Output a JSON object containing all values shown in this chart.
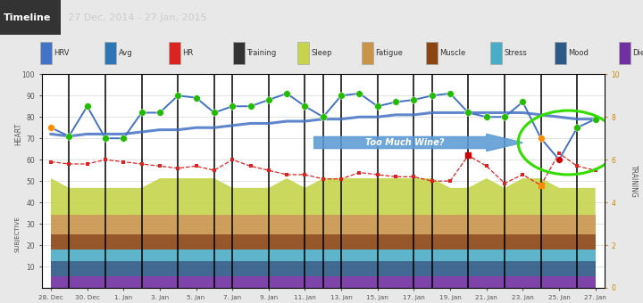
{
  "title": "27 Dec, 2014 - 27 Jan, 2015",
  "header_bg": "#4a4a4a",
  "legend_bg": "#ffffff",
  "plot_bg": "#ffffff",
  "fig_bg": "#e8e8e8",
  "x_labels": [
    "28. Dec",
    "30. Dec",
    "1. Jan",
    "3. Jan",
    "5. Jan",
    "7. Jan",
    "9. Jan",
    "11. Jan",
    "13. Jan",
    "15. Jan",
    "17. Jan",
    "19. Jan",
    "21. Jan",
    "23. Jan",
    "25. Jan",
    "27. Jan"
  ],
  "x_tick_pos": [
    0,
    2,
    4,
    6,
    8,
    10,
    12,
    14,
    16,
    18,
    20,
    22,
    24,
    26,
    28,
    30
  ],
  "hrv_x": [
    0,
    1,
    2,
    3,
    4,
    5,
    6,
    7,
    8,
    9,
    10,
    11,
    12,
    13,
    14,
    15,
    16,
    17,
    18,
    19,
    20,
    21,
    22,
    23,
    24,
    25,
    26,
    27,
    28,
    29,
    30
  ],
  "hrv_values": [
    75,
    71,
    85,
    70,
    70,
    82,
    82,
    90,
    89,
    82,
    85,
    85,
    88,
    91,
    85,
    80,
    90,
    91,
    85,
    87,
    88,
    90,
    91,
    82,
    80,
    80,
    87,
    70,
    60,
    75,
    79
  ],
  "hrv_dot_colors": [
    "#ff8c00",
    "#22bb00",
    "#22bb00",
    "#22bb00",
    "#22bb00",
    "#22bb00",
    "#22bb00",
    "#22bb00",
    "#22bb00",
    "#22bb00",
    "#22bb00",
    "#22bb00",
    "#22bb00",
    "#22bb00",
    "#22bb00",
    "#22bb00",
    "#22bb00",
    "#22bb00",
    "#22bb00",
    "#22bb00",
    "#22bb00",
    "#22bb00",
    "#22bb00",
    "#22bb00",
    "#22bb00",
    "#22bb00",
    "#22bb00",
    "#ff8c00",
    "#cc0000",
    "#22bb00",
    "#22bb00"
  ],
  "avg_x": [
    0,
    1,
    2,
    3,
    4,
    5,
    6,
    7,
    8,
    9,
    10,
    11,
    12,
    13,
    14,
    15,
    16,
    17,
    18,
    19,
    20,
    21,
    22,
    23,
    24,
    25,
    26,
    27,
    28,
    29,
    30
  ],
  "avg_values": [
    72,
    71,
    72,
    72,
    72,
    73,
    74,
    74,
    75,
    75,
    76,
    77,
    77,
    78,
    78,
    79,
    79,
    80,
    80,
    81,
    81,
    82,
    82,
    82,
    82,
    82,
    82,
    81,
    80,
    79,
    79
  ],
  "hr_x": [
    0,
    1,
    2,
    3,
    4,
    5,
    6,
    7,
    8,
    9,
    10,
    11,
    12,
    13,
    14,
    15,
    16,
    17,
    18,
    19,
    20,
    21,
    22,
    23,
    24,
    25,
    26,
    27,
    28,
    29,
    30
  ],
  "hr_values": [
    59,
    58,
    58,
    60,
    59,
    58,
    57,
    56,
    57,
    55,
    60,
    57,
    55,
    53,
    53,
    51,
    51,
    54,
    53,
    52,
    52,
    50,
    50,
    62,
    57,
    49,
    53,
    48,
    63,
    57,
    55
  ],
  "hr_dot_colors": [
    "#dd2222",
    "#dd2222",
    "#dd2222",
    "#dd2222",
    "#dd2222",
    "#dd2222",
    "#dd2222",
    "#dd2222",
    "#dd2222",
    "#dd2222",
    "#dd2222",
    "#dd2222",
    "#dd2222",
    "#dd2222",
    "#dd2222",
    "#dd2222",
    "#dd2222",
    "#dd2222",
    "#dd2222",
    "#dd2222",
    "#dd2222",
    "#dd2222",
    "#dd2222",
    "#cc0000",
    "#dd2222",
    "#dd2222",
    "#dd2222",
    "#ff8c00",
    "#dd2222",
    "#dd2222",
    "#dd2222"
  ],
  "training_x": [
    1,
    3,
    5,
    7,
    9,
    10,
    12,
    14,
    15,
    16,
    18,
    20,
    21,
    23,
    25,
    27,
    29
  ],
  "sleep_data": [
    7,
    7,
    7,
    7,
    7,
    7,
    7,
    7,
    7,
    7,
    7,
    7,
    7,
    7,
    7,
    7,
    7,
    7,
    7,
    7,
    7,
    7,
    7,
    7,
    7,
    7,
    7,
    7,
    7,
    7,
    7
  ],
  "fatigue_data": [
    5,
    5,
    5,
    5,
    5,
    5,
    5,
    5,
    5,
    5,
    5,
    5,
    5,
    5,
    5,
    5,
    5,
    5,
    5,
    5,
    5,
    5,
    5,
    5,
    5,
    5,
    5,
    5,
    5,
    5,
    5
  ],
  "muscle_data": [
    4,
    4,
    4,
    4,
    4,
    4,
    4,
    4,
    4,
    4,
    4,
    4,
    4,
    4,
    4,
    4,
    4,
    4,
    4,
    4,
    4,
    4,
    4,
    4,
    4,
    4,
    4,
    4,
    4,
    4,
    4
  ],
  "stress_data": [
    3,
    3,
    3,
    3,
    3,
    3,
    3,
    3,
    3,
    3,
    3,
    3,
    3,
    3,
    3,
    3,
    3,
    3,
    3,
    3,
    3,
    3,
    3,
    3,
    3,
    3,
    3,
    3,
    3,
    3,
    3
  ],
  "mood_data": [
    4,
    4,
    4,
    4,
    4,
    4,
    4,
    4,
    4,
    4,
    4,
    4,
    4,
    4,
    4,
    4,
    4,
    4,
    4,
    4,
    4,
    4,
    4,
    4,
    4,
    4,
    4,
    4,
    4,
    4,
    4
  ],
  "diet_data": [
    3,
    3,
    3,
    3,
    3,
    3,
    3,
    3,
    3,
    3,
    3,
    3,
    3,
    3,
    3,
    3,
    3,
    3,
    3,
    3,
    3,
    3,
    3,
    3,
    3,
    3,
    3,
    3,
    3,
    3,
    3
  ],
  "sleep_peaks": [
    0,
    6,
    7,
    8,
    9,
    13,
    15,
    16,
    17,
    18,
    19,
    20,
    21,
    24,
    26,
    27
  ],
  "hrv_color": "#4472c4",
  "avg_color": "#4472c4",
  "hr_color": "#dd2222",
  "sleep_color": "#c5d44b",
  "fatigue_color": "#c8944a",
  "muscle_color": "#8b4513",
  "stress_color": "#4bacc6",
  "mood_color": "#2d5986",
  "diet_color": "#7030a0",
  "green_dot": "#22bb00",
  "orange_dot": "#ff8c00",
  "red_dot": "#cc0000",
  "arrow_color": "#5b9bd5",
  "circle_color": "#33dd00",
  "xlim": [
    -0.5,
    30.5
  ],
  "ylim_heart": [
    0,
    100
  ],
  "ylim_training": [
    0,
    10
  ]
}
